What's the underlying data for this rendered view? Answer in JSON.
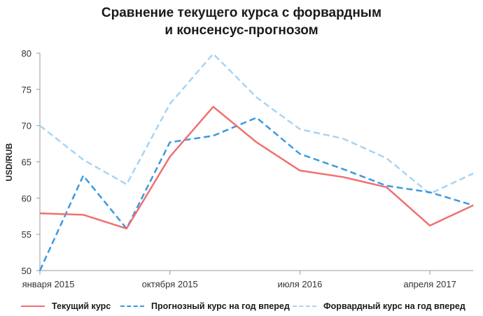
{
  "chart_data": {
    "type": "line",
    "title_lines": [
      "Сравнение текущего курса с форвардным",
      "и консенсус-прогнозом"
    ],
    "ylabel": "USD/RUB",
    "ylim": [
      50,
      80
    ],
    "yticks": [
      50,
      55,
      60,
      65,
      70,
      75,
      80
    ],
    "xlim": [
      0,
      10
    ],
    "xtick_labels": [
      {
        "x": 0,
        "label": "января 2015"
      },
      {
        "x": 3,
        "label": "октября 2015"
      },
      {
        "x": 6,
        "label": "июля 2016"
      },
      {
        "x": 9,
        "label": "апреля 2017"
      }
    ],
    "x": [
      0,
      1,
      2,
      3,
      4,
      5,
      6,
      7,
      8,
      9,
      10
    ],
    "series": [
      {
        "name": "Текущий курс",
        "color": "#f07070",
        "dash": "solid",
        "values": [
          57.9,
          57.7,
          55.8,
          65.7,
          72.6,
          67.7,
          63.8,
          62.9,
          61.5,
          56.2,
          59.0
        ]
      },
      {
        "name": "Прогнозный курс на год вперед",
        "color": "#3a9ae0",
        "dash": "dashed",
        "values": [
          50.0,
          63.1,
          55.8,
          67.7,
          68.6,
          71.1,
          66.1,
          64.0,
          61.7,
          60.8,
          59.0
        ]
      },
      {
        "name": "Форвардный курс на год вперед",
        "color": "#a8d4f3",
        "dash": "dashed",
        "values": [
          70.0,
          65.3,
          61.9,
          73.0,
          79.9,
          73.9,
          69.5,
          68.2,
          65.5,
          60.6,
          63.4
        ]
      }
    ],
    "grid": false,
    "legend_position": "bottom"
  }
}
